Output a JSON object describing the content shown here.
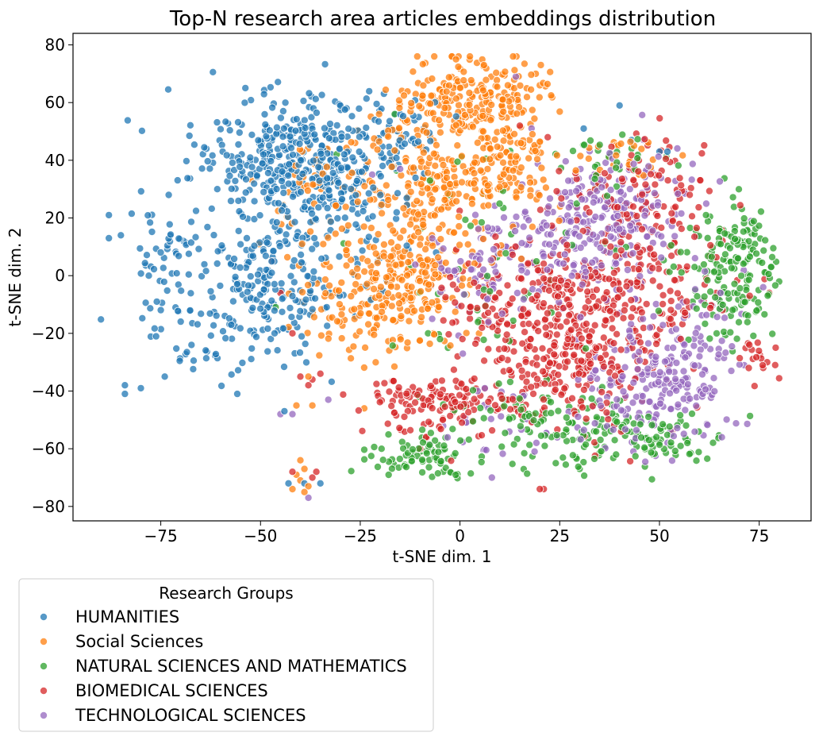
{
  "chart_data": {
    "type": "scatter",
    "title": "Top-N research area articles embeddings distribution",
    "xlabel": "t-SNE dim. 1",
    "ylabel": "t-SNE dim. 2",
    "xlim": [
      -97,
      88
    ],
    "ylim": [
      -85,
      84
    ],
    "xticks": [
      -75,
      -50,
      -25,
      0,
      25,
      50,
      75
    ],
    "xtick_labels": [
      "−75",
      "−50",
      "−25",
      "0",
      "25",
      "50",
      "75"
    ],
    "yticks": [
      -80,
      -60,
      -40,
      -20,
      0,
      20,
      40,
      60,
      80
    ],
    "ytick_labels": [
      "−80",
      "−60",
      "−40",
      "−20",
      "0",
      "20",
      "40",
      "60",
      "80"
    ],
    "grid": false,
    "legend": {
      "title": "Research Groups",
      "placement": "below-left"
    },
    "series": [
      {
        "name": "HUMANITIES",
        "color": "#1f77b4",
        "clusters": [
          {
            "x": -45,
            "y": 40,
            "sx": 11,
            "sy": 12,
            "n": 330
          },
          {
            "x": -50,
            "y": -5,
            "sx": 10,
            "sy": 12,
            "n": 200
          },
          {
            "x": -30,
            "y": 28,
            "sx": 8,
            "sy": 12,
            "n": 120
          },
          {
            "x": -18,
            "y": 48,
            "sx": 8,
            "sy": 7,
            "n": 60
          },
          {
            "x": -72,
            "y": 8,
            "sx": 5,
            "sy": 12,
            "n": 60
          },
          {
            "x": -68,
            "y": -28,
            "sx": 5,
            "sy": 6,
            "n": 20
          }
        ],
        "points": [
          {
            "x": -88,
            "y": 21
          },
          {
            "x": -88,
            "y": 13
          },
          {
            "x": -85,
            "y": 14
          },
          {
            "x": -84,
            "y": -38
          },
          {
            "x": -80,
            "y": -39
          },
          {
            "x": -84,
            "y": -41
          },
          {
            "x": -78,
            "y": 0
          },
          {
            "x": -76,
            "y": -9
          },
          {
            "x": -74,
            "y": -35
          },
          {
            "x": -73,
            "y": 28
          },
          {
            "x": -43,
            "y": -72
          },
          {
            "x": -39,
            "y": -72
          },
          {
            "x": -35,
            "y": -72
          },
          {
            "x": -44,
            "y": -47
          },
          {
            "x": -30,
            "y": 59
          },
          {
            "x": 40,
            "y": 59
          },
          {
            "x": 50,
            "y": 43
          },
          {
            "x": 31,
            "y": 51
          },
          {
            "x": 43,
            "y": 47
          },
          {
            "x": 52,
            "y": 43
          },
          {
            "x": -6,
            "y": 8
          }
        ]
      },
      {
        "name": "Social Sciences",
        "color": "#ff7f0e",
        "clusters": [
          {
            "x": 2,
            "y": 60,
            "sx": 10,
            "sy": 8,
            "n": 230
          },
          {
            "x": -5,
            "y": 30,
            "sx": 11,
            "sy": 11,
            "n": 220
          },
          {
            "x": -20,
            "y": -8,
            "sx": 9,
            "sy": 9,
            "n": 200
          },
          {
            "x": -10,
            "y": 5,
            "sx": 8,
            "sy": 10,
            "n": 100
          },
          {
            "x": 12,
            "y": 40,
            "sx": 7,
            "sy": 8,
            "n": 80
          },
          {
            "x": -35,
            "y": 30,
            "sx": 7,
            "sy": 10,
            "n": 50
          },
          {
            "x": 38,
            "y": 40,
            "sx": 5,
            "sy": 5,
            "n": 25
          }
        ],
        "points": [
          {
            "x": -40,
            "y": -64
          },
          {
            "x": -39,
            "y": -67
          },
          {
            "x": -41,
            "y": -69
          },
          {
            "x": -40,
            "y": -71
          },
          {
            "x": -38,
            "y": -73
          },
          {
            "x": -42,
            "y": -74
          },
          {
            "x": -39,
            "y": -75
          },
          {
            "x": -24,
            "y": -46
          },
          {
            "x": -38,
            "y": -35
          },
          {
            "x": -37,
            "y": -45
          },
          {
            "x": -41,
            "y": -45
          },
          {
            "x": -1,
            "y": 75
          },
          {
            "x": 6,
            "y": 73
          },
          {
            "x": 20,
            "y": 66
          },
          {
            "x": 19,
            "y": 70
          }
        ]
      },
      {
        "name": "NATURAL SCIENCES AND MATHEMATICS",
        "color": "#2ca02c",
        "clusters": [
          {
            "x": 68,
            "y": 0,
            "sx": 6,
            "sy": 12,
            "n": 150
          },
          {
            "x": -10,
            "y": -63,
            "sx": 7,
            "sy": 4,
            "n": 80
          },
          {
            "x": 35,
            "y": -55,
            "sx": 12,
            "sy": 7,
            "n": 110
          },
          {
            "x": 50,
            "y": -55,
            "sx": 6,
            "sy": 5,
            "n": 40
          },
          {
            "x": 15,
            "y": -48,
            "sx": 8,
            "sy": 6,
            "n": 40
          },
          {
            "x": 10,
            "y": 10,
            "sx": 18,
            "sy": 22,
            "n": 60
          },
          {
            "x": 38,
            "y": 40,
            "sx": 6,
            "sy": 5,
            "n": 25
          },
          {
            "x": 70,
            "y": 15,
            "sx": 3,
            "sy": 4,
            "n": 25
          }
        ],
        "points": [
          {
            "x": -5,
            "y": -22
          },
          {
            "x": -3,
            "y": -25
          },
          {
            "x": -8,
            "y": -20
          },
          {
            "x": 24,
            "y": -65
          },
          {
            "x": 30,
            "y": -67
          },
          {
            "x": 57,
            "y": -58
          },
          {
            "x": 78,
            "y": 3
          },
          {
            "x": 75,
            "y": 5
          }
        ]
      },
      {
        "name": "BIOMEDICAL SCIENCES",
        "color": "#d62728",
        "clusters": [
          {
            "x": 25,
            "y": -28,
            "sx": 12,
            "sy": 13,
            "n": 300
          },
          {
            "x": 38,
            "y": -5,
            "sx": 14,
            "sy": 11,
            "n": 240
          },
          {
            "x": -5,
            "y": -45,
            "sx": 10,
            "sy": 5,
            "n": 130
          },
          {
            "x": 45,
            "y": 30,
            "sx": 9,
            "sy": 10,
            "n": 110
          },
          {
            "x": 10,
            "y": -5,
            "sx": 8,
            "sy": 8,
            "n": 60
          },
          {
            "x": 75,
            "y": -28,
            "sx": 3,
            "sy": 4,
            "n": 15
          }
        ],
        "points": [
          {
            "x": -40,
            "y": -35
          },
          {
            "x": -37,
            "y": -36
          },
          {
            "x": -35,
            "y": -34
          },
          {
            "x": -38,
            "y": -38
          },
          {
            "x": -45,
            "y": -6
          },
          {
            "x": -47,
            "y": 5
          },
          {
            "x": -42,
            "y": -20
          },
          {
            "x": -10,
            "y": -60
          },
          {
            "x": 21,
            "y": -74
          },
          {
            "x": 20,
            "y": -74
          },
          {
            "x": 79,
            "y": -31
          },
          {
            "x": 77,
            "y": -30
          },
          {
            "x": 76,
            "y": -32
          },
          {
            "x": 15,
            "y": 52
          },
          {
            "x": 22,
            "y": 48
          },
          {
            "x": -42,
            "y": -68
          },
          {
            "x": -36,
            "y": -68
          },
          {
            "x": -37,
            "y": -70
          }
        ]
      },
      {
        "name": "TECHNOLOGICAL SCIENCES",
        "color": "#9467bd",
        "clusters": [
          {
            "x": 28,
            "y": 15,
            "sx": 11,
            "sy": 10,
            "n": 220
          },
          {
            "x": 50,
            "y": -38,
            "sx": 8,
            "sy": 10,
            "n": 200
          },
          {
            "x": 45,
            "y": 30,
            "sx": 8,
            "sy": 10,
            "n": 80
          },
          {
            "x": 5,
            "y": 0,
            "sx": 7,
            "sy": 10,
            "n": 60
          },
          {
            "x": 60,
            "y": -15,
            "sx": 6,
            "sy": 8,
            "n": 40
          },
          {
            "x": 15,
            "y": -50,
            "sx": 12,
            "sy": 8,
            "n": 40
          }
        ],
        "points": [
          {
            "x": -38,
            "y": -77
          },
          {
            "x": -45,
            "y": -48
          },
          {
            "x": -42,
            "y": -48
          },
          {
            "x": -33,
            "y": -43
          },
          {
            "x": -22,
            "y": 35
          },
          {
            "x": -15,
            "y": 37
          },
          {
            "x": 14,
            "y": 69
          },
          {
            "x": 8,
            "y": -70
          },
          {
            "x": 73,
            "y": 19
          },
          {
            "x": 76,
            "y": -4
          },
          {
            "x": 68,
            "y": -33
          }
        ]
      }
    ]
  }
}
